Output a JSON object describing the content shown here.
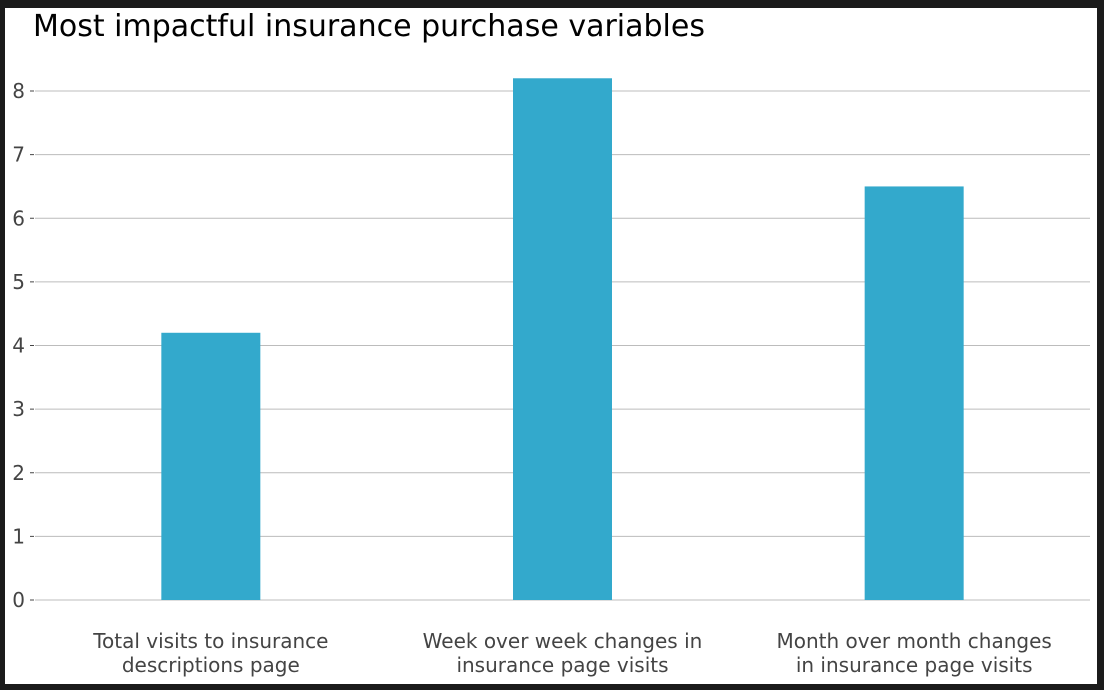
{
  "chart_data": {
    "type": "bar",
    "title": "Most impactful insurance purchase variables",
    "xlabel": "",
    "ylabel": "",
    "categories": [
      [
        "Total visits to insurance",
        "descriptions page"
      ],
      [
        "Week over week changes in",
        "insurance page visits"
      ],
      [
        "Month over month changes",
        "in insurance page visits"
      ]
    ],
    "values": [
      4.2,
      8.2,
      6.5
    ],
    "yticks": [
      "0",
      "1",
      "2",
      "3",
      "4",
      "5",
      "6",
      "7",
      "8"
    ],
    "ylim": [
      0,
      8.6
    ],
    "grid": true,
    "legend": "none",
    "bar_color": "#33a9cc",
    "grid_color": "#bcbcbc"
  }
}
